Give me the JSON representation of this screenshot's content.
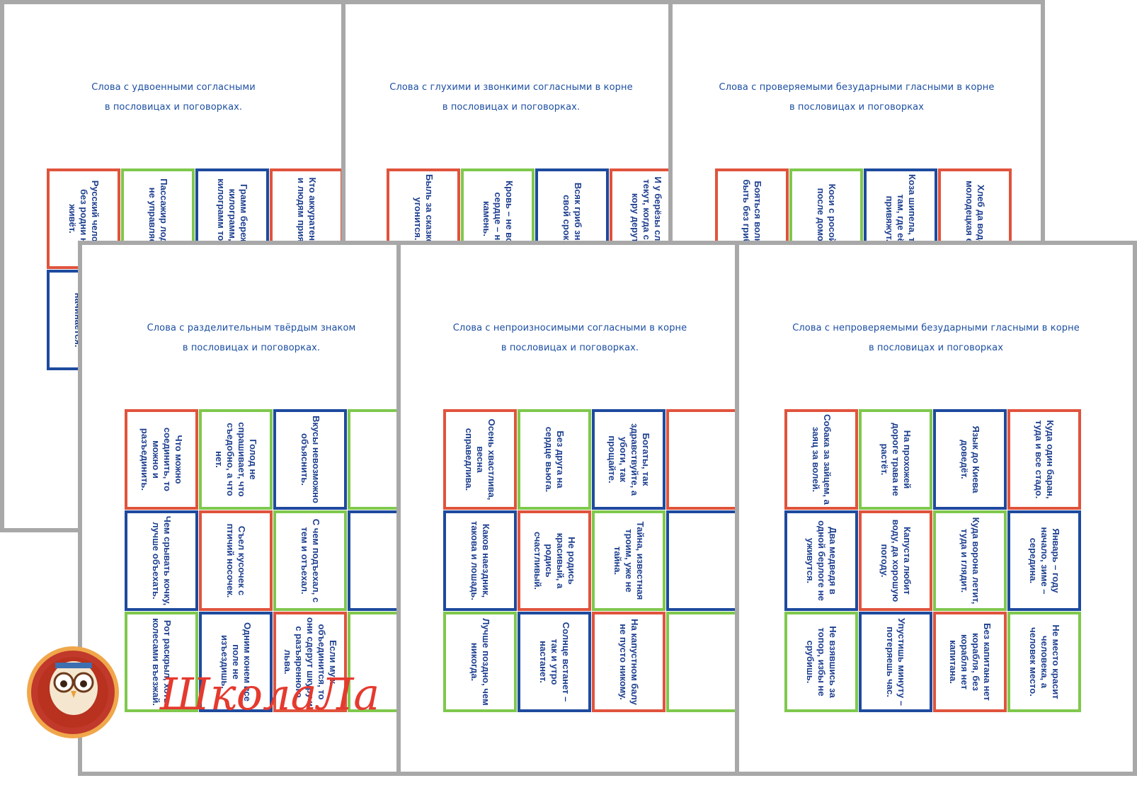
{
  "sheets": [
    {
      "title1": "Слова с удвоенными согласными",
      "title2": "в пословицах и поговорках.",
      "cards": [
        "Русский человек без родни не живёт.",
        "Пассажир лодкой не управляет.",
        "Грамм бережёт килограмм, а килограмм тонну.",
        "Кто аккуратен, тот и людям приятен.",
        "понедельник начинается."
      ]
    },
    {
      "title1": "Слова с глухими и звонкими согласными в корне",
      "title2": "в пословицах и поговорках.",
      "cards": [
        "Быль за сказкой не угонится.",
        "Кровь – не вода, сердце – не камень.",
        "Всяк гриб знает свой срок.",
        "И у берёзы слёзки текут, когда с неё кору дерут."
      ]
    },
    {
      "title1": "Слова с проверяемыми безударными гласными в корне",
      "title2": "в пословицах и поговорках",
      "cards": [
        "Бояться волков, быть без грибов.",
        "Коси с росой, а после домой.",
        "Коза шипела, траву там, где её привяжут.",
        "Хлеб да вода – молодецкая еда."
      ]
    },
    {
      "title1": "Слова с разделительным твёрдым знаком",
      "title2": "в пословицах и поговорках.",
      "cards": [
        "Что можно соединить, то можно и разъединить.",
        "Голод не спрашивает, что съедобно, а что нет.",
        "Вкусы невозможно объяснить.",
        "Чем срывать кочку, лучше объехать.",
        "Съел кусочек с птичий носочек.",
        "С чем подъехал, с тем и отъехал.",
        "Рот раскрыл, хоть колесами въезжай.",
        "Одним конем все поле не изъездишь.",
        "Если муж объединится, то они сдерут шкуру и с разъяренного льва."
      ]
    },
    {
      "title1": "Слова с непроизносимыми согласными в корне",
      "title2": "в пословицах и поговорках.",
      "cards": [
        "Осень хвастлива, весна справедлива.",
        "Без друга на сердце вьюга.",
        "Богаты, так здравствуйте, а убоги, так прощайте.",
        "Каков наездник, такова и лошадь.",
        "Не родись красивый, а родись счастливый.",
        "Тайна, известная троим, уже не тайна.",
        "Лучше поздно, чем никогда.",
        "Солнце встанет – так и утро настанет.",
        "На капустном балу не пусто никому."
      ]
    },
    {
      "title1": "Слова с непроверяемыми безударными гласными в корне",
      "title2": "в пословицах и поговорках",
      "cards": [
        "Собака за зайцем, а заяц за волей.",
        "На прохожей дороге трава не растёт.",
        "Язык до Киева доведёт.",
        "Куда один баран, туда и все стадо.",
        "Два медведя в одной берлоге не уживутся.",
        "Капуста любит воду, да хорошую погоду.",
        "Куда ворона летит, туда и глядит.",
        "Январь – году начало, зиме – середина.",
        "Не взявшись за топор, избы не срубишь.",
        "Упустишь минуту – потеряешь час.",
        "Без капитана нет корабля, без корабля нет капитана.",
        "Не место красит человека, а человек место."
      ]
    }
  ],
  "logo_text": "ШколаЛа",
  "colors": {
    "red": "#e0533c",
    "green": "#7fc84d",
    "blue": "#1e4a9e",
    "title": "#1d4fa3",
    "frame": "#a8a8a8"
  }
}
